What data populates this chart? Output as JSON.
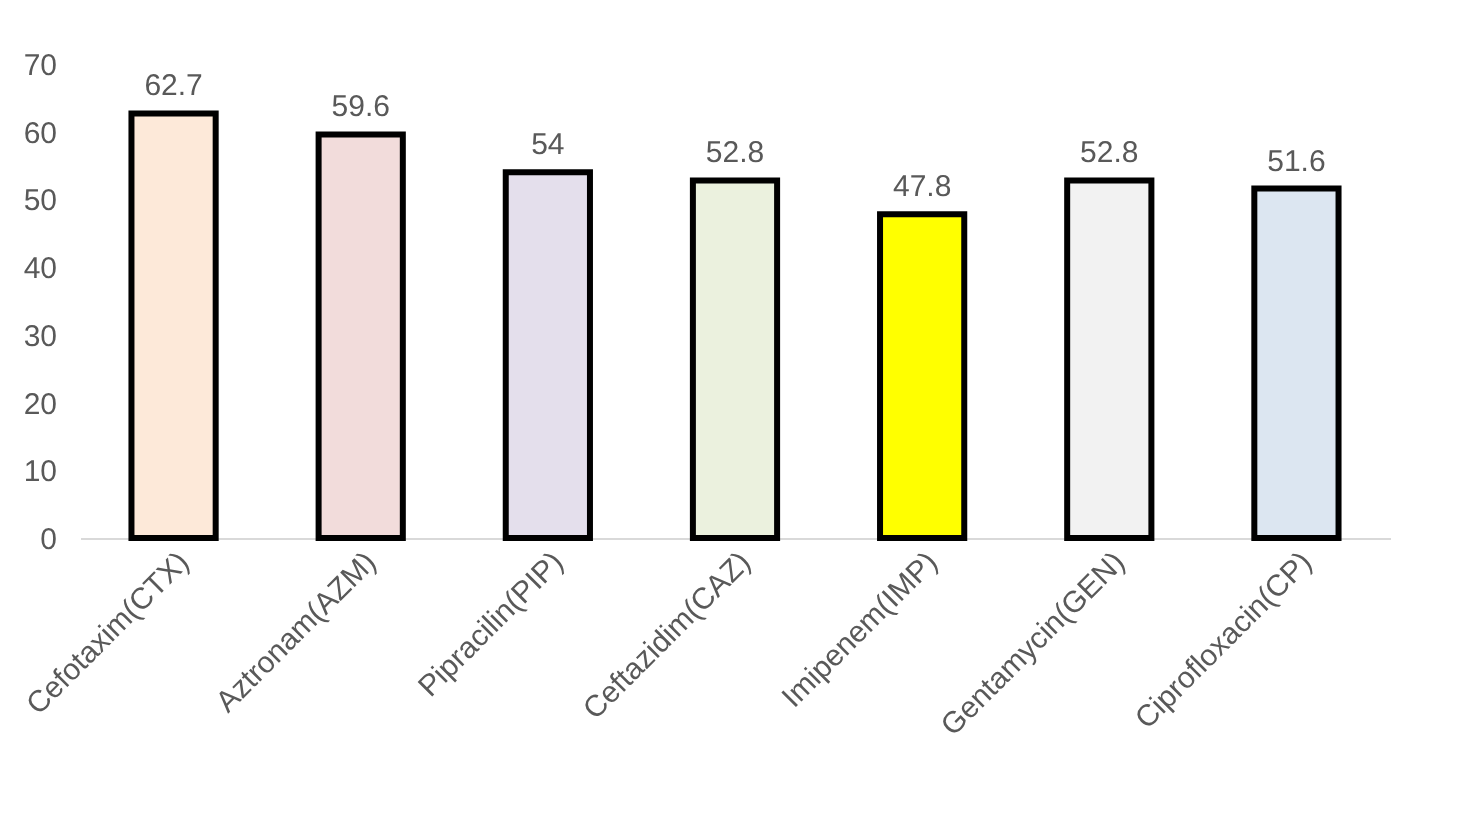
{
  "chart_data": {
    "type": "bar",
    "categories": [
      "Cefotaxim(CTX)",
      "Aztronam(AZM)",
      "Pipracilin(PIP)",
      "Ceftazidim(CAZ)",
      "Imipenem(IMP)",
      "Gentamycin(GEN)",
      "Ciprofloxacin(CP)"
    ],
    "values": [
      62.7,
      59.6,
      54,
      52.8,
      47.8,
      52.8,
      51.6
    ],
    "colors": [
      "#fde9d9",
      "#f2dcdb",
      "#e4dfec",
      "#ebf1de",
      "#ffff00",
      "#f2f2f2",
      "#dce6f1"
    ],
    "ylim": [
      0,
      70
    ],
    "yticks": [
      0,
      10,
      20,
      30,
      40,
      50,
      60,
      70
    ],
    "data_labels": true,
    "grid": false,
    "legend": false
  }
}
